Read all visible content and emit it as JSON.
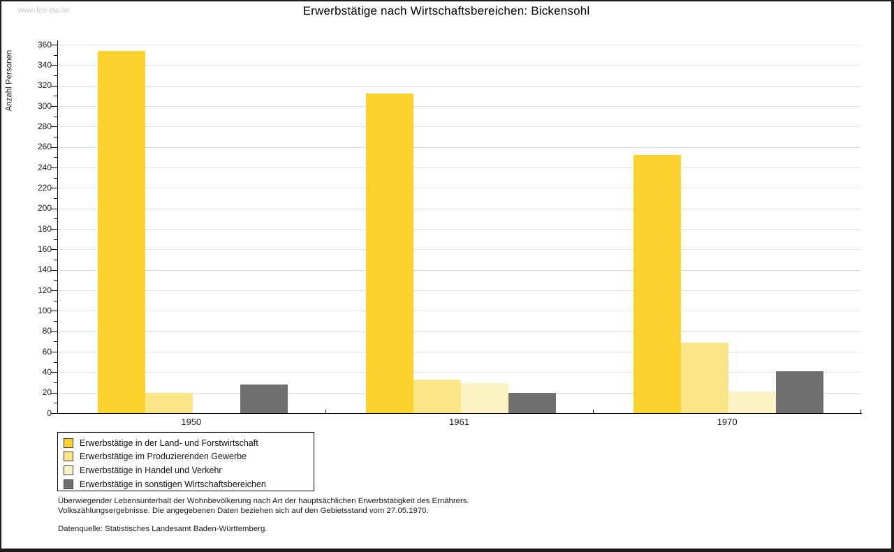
{
  "page": {
    "watermark": "www.leo-bw.de",
    "title": "Erwerbstätige nach Wirtschaftsbereichen: Bickensohl"
  },
  "chart_data": {
    "type": "bar",
    "title": "Erwerbstätige nach Wirtschaftsbereichen: Bickensohl",
    "xlabel": "",
    "ylabel": "Anzahl Personen",
    "categories": [
      "1950",
      "1961",
      "1970"
    ],
    "series": [
      {
        "name": "Erwerbstätige in der Land- und Forstwirtschaft",
        "color": "#FBD22C",
        "values": [
          354,
          312,
          252
        ]
      },
      {
        "name": "Erwerbstätige im Produzierenden Gewerbe",
        "color": "#FAE689",
        "values": [
          20,
          33,
          69
        ]
      },
      {
        "name": "Erwerbstätige in Handel und Verkehr",
        "color": "#FCF3C5",
        "values": [
          0,
          29,
          21
        ]
      },
      {
        "name": "Erwerbstätige in sonstigen Wirtschaftsbereichen",
        "color": "#6F6F6F",
        "values": [
          28,
          20,
          41
        ]
      }
    ],
    "ylim": [
      0,
      360
    ],
    "ytick_step": 20,
    "yminor_step": 10,
    "grid": "horizontal",
    "legend_position": "bottom-left",
    "gridline_color": "#dfdfdf"
  },
  "footnotes": {
    "line1": "Überwiegender Lebensunterhalt der Wohnbevölkerung nach Art der hauptsächlichen Erwerbstätigkeit des Ernährers.",
    "line2": "Volkszählungsergebnisse. Die angegebenen Daten beziehen sich auf den Gebietsstand vom 27.05.1970.",
    "source": "Datenquelle: Statistisches Landesamt Baden-Württemberg."
  }
}
